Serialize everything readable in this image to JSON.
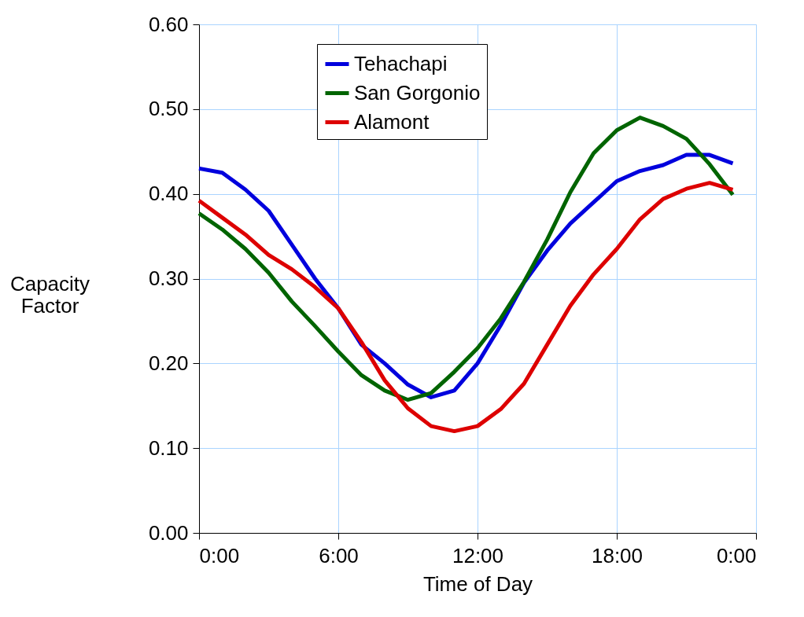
{
  "chart_data": {
    "type": "line",
    "xlabel": "Time of Day",
    "ylabel": "Capacity Factor",
    "x": [
      0,
      1,
      2,
      3,
      4,
      5,
      6,
      7,
      8,
      9,
      10,
      11,
      12,
      13,
      14,
      15,
      16,
      17,
      18,
      19,
      20,
      21,
      22,
      23
    ],
    "series": [
      {
        "name": "Tehachapi",
        "color": "#0000dd",
        "values": [
          0.43,
          0.425,
          0.405,
          0.38,
          0.34,
          0.3,
          0.265,
          0.222,
          0.2,
          0.175,
          0.16,
          0.168,
          0.2,
          0.245,
          0.295,
          0.333,
          0.365,
          0.39,
          0.415,
          0.427,
          0.434,
          0.446,
          0.446,
          0.436
        ]
      },
      {
        "name": "San Gorgonio",
        "color": "#006400",
        "values": [
          0.377,
          0.358,
          0.335,
          0.307,
          0.273,
          0.244,
          0.214,
          0.186,
          0.168,
          0.157,
          0.165,
          0.19,
          0.218,
          0.253,
          0.296,
          0.346,
          0.402,
          0.448,
          0.475,
          0.49,
          0.48,
          0.465,
          0.435,
          0.399
        ]
      },
      {
        "name": "Alamont",
        "color": "#dd0000",
        "values": [
          0.392,
          0.372,
          0.352,
          0.328,
          0.311,
          0.29,
          0.265,
          0.225,
          0.18,
          0.147,
          0.126,
          0.12,
          0.126,
          0.146,
          0.176,
          0.222,
          0.268,
          0.305,
          0.335,
          0.37,
          0.394,
          0.406,
          0.413,
          0.405
        ]
      }
    ],
    "xlim": [
      0,
      24
    ],
    "xticks": [
      {
        "value": 0,
        "label": "0:00"
      },
      {
        "value": 6,
        "label": "6:00"
      },
      {
        "value": 12,
        "label": "12:00"
      },
      {
        "value": 18,
        "label": "18:00"
      },
      {
        "value": 24,
        "label": "0:00"
      }
    ],
    "ylim": [
      0,
      0.6
    ],
    "yticks": [
      {
        "value": 0,
        "label": "0.00"
      },
      {
        "value": 0.1,
        "label": "0.10"
      },
      {
        "value": 0.2,
        "label": "0.20"
      },
      {
        "value": 0.3,
        "label": "0.30"
      },
      {
        "value": 0.4,
        "label": "0.40"
      },
      {
        "value": 0.5,
        "label": "0.50"
      },
      {
        "value": 0.6,
        "label": "0.60"
      }
    ],
    "grid": true,
    "legend": "top",
    "marker": "none",
    "line_style": "solid"
  }
}
